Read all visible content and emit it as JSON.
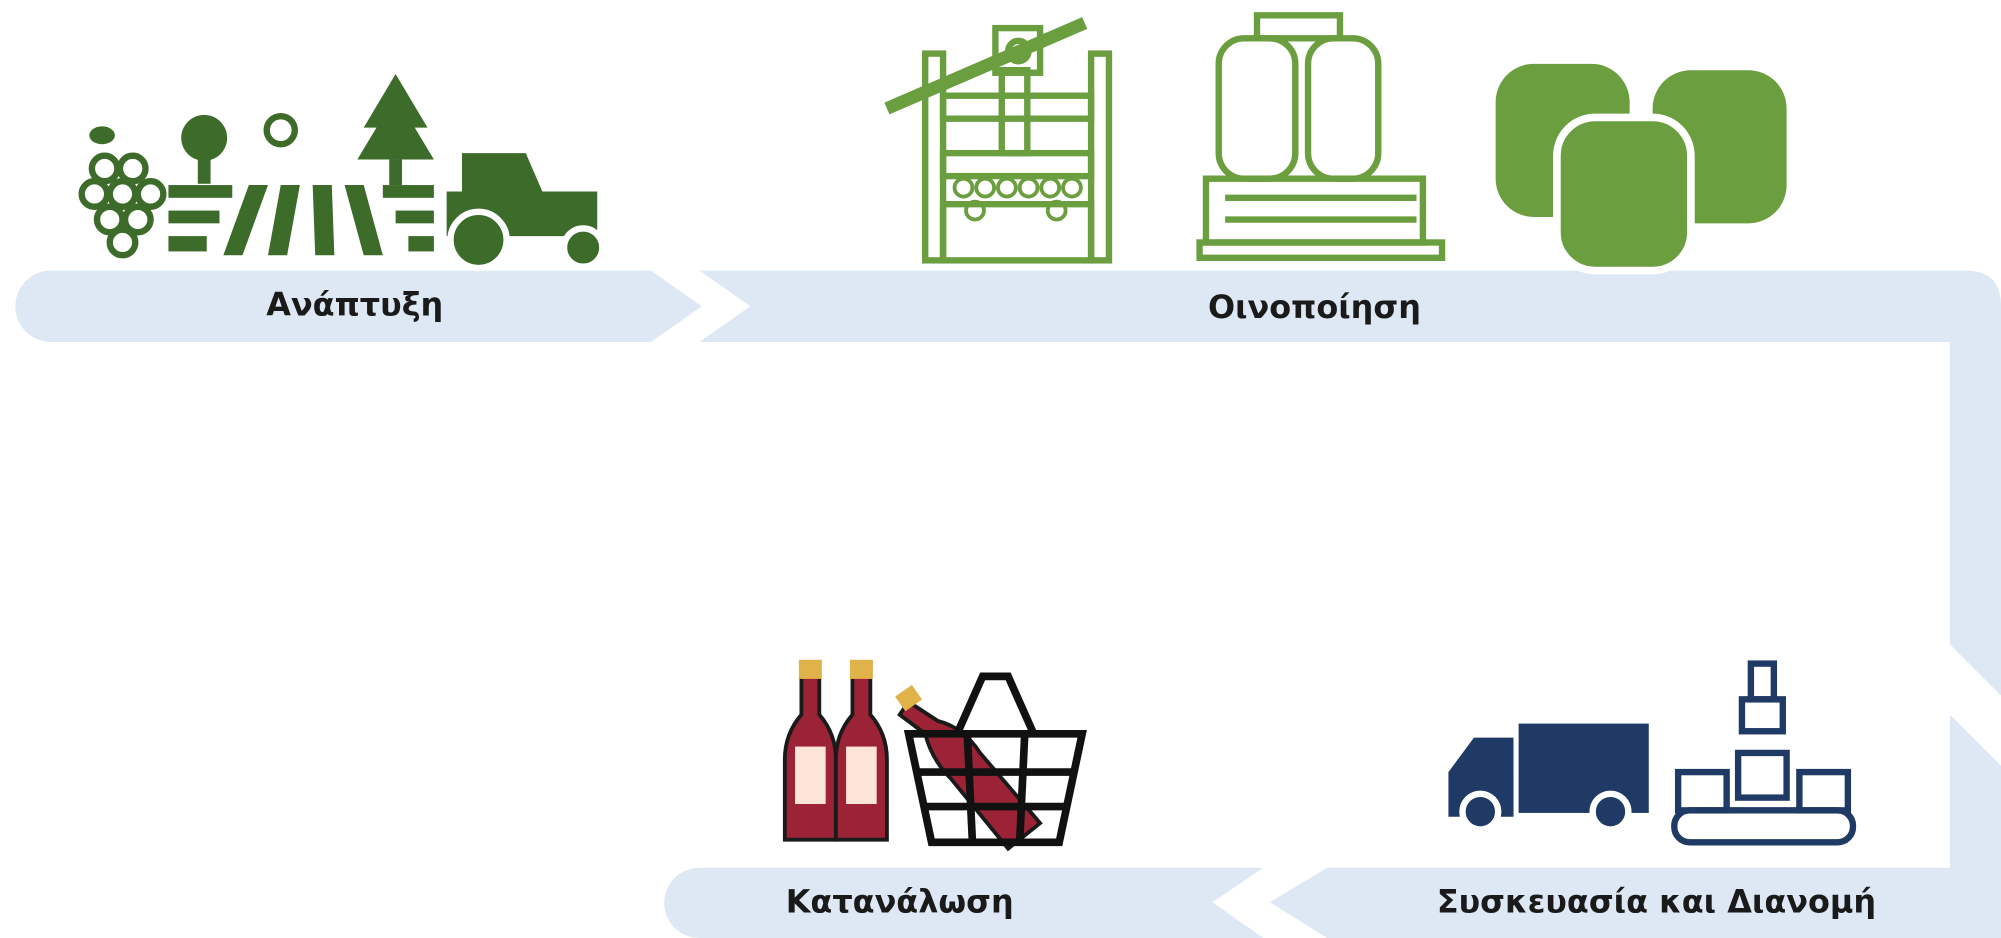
{
  "stages": [
    {
      "label": "Ανάπτυξη"
    },
    {
      "label": "Οινοποίηση"
    },
    {
      "label": "Συσκευασία και Διανομή"
    },
    {
      "label": "Κατανάλωση"
    }
  ]
}
